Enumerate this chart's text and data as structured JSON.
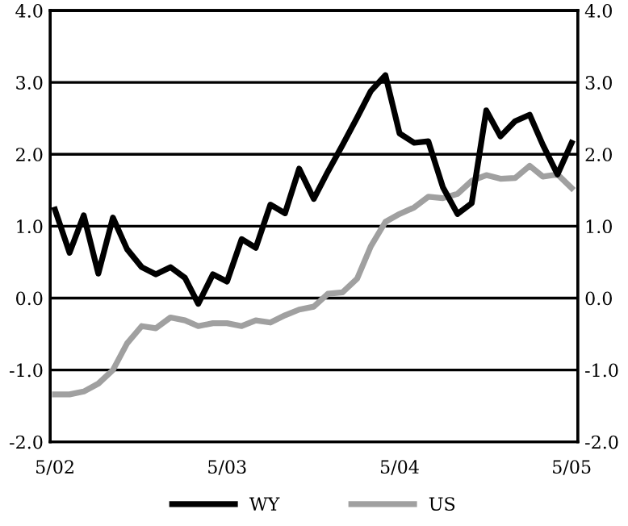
{
  "chart_data": {
    "type": "line",
    "x": [
      "2002-05",
      "2002-06",
      "2002-07",
      "2002-08",
      "2002-09",
      "2002-10",
      "2002-11",
      "2002-12",
      "2003-01",
      "2003-02",
      "2003-03",
      "2003-04",
      "2003-05",
      "2003-06",
      "2003-07",
      "2003-08",
      "2003-09",
      "2003-10",
      "2003-11",
      "2003-12",
      "2004-01",
      "2004-02",
      "2004-03",
      "2004-04",
      "2004-05",
      "2004-06",
      "2004-07",
      "2004-08",
      "2004-09",
      "2004-10",
      "2004-11",
      "2004-12",
      "2005-01",
      "2005-02",
      "2005-03",
      "2005-04",
      "2005-05"
    ],
    "series": [
      {
        "name": "WY",
        "color": "#000000",
        "values": [
          1.23,
          0.63,
          1.15,
          0.34,
          1.12,
          0.68,
          0.43,
          0.33,
          0.43,
          0.28,
          -0.08,
          0.33,
          0.23,
          0.82,
          0.7,
          1.3,
          1.18,
          1.8,
          1.38,
          1.76,
          2.13,
          2.51,
          2.88,
          3.1,
          2.29,
          2.16,
          2.18,
          1.54,
          1.17,
          1.32,
          2.61,
          2.25,
          2.46,
          2.55,
          2.13,
          1.72,
          2.16
        ]
      },
      {
        "name": "US",
        "color": "#a0a0a0",
        "values": [
          -1.34,
          -1.34,
          -1.3,
          -1.19,
          -1.0,
          -0.63,
          -0.39,
          -0.42,
          -0.27,
          -0.31,
          -0.39,
          -0.35,
          -0.35,
          -0.39,
          -0.31,
          -0.34,
          -0.24,
          -0.16,
          -0.12,
          0.06,
          0.08,
          0.27,
          0.72,
          1.06,
          1.17,
          1.26,
          1.41,
          1.39,
          1.45,
          1.63,
          1.71,
          1.66,
          1.67,
          1.84,
          1.69,
          1.72,
          1.53
        ]
      }
    ],
    "xlim": [
      "2002-04-21",
      "2005-05-14"
    ],
    "xticks": [
      {
        "value": "2002-05",
        "label": "5/02"
      },
      {
        "value": "2003-05",
        "label": "5/03"
      },
      {
        "value": "2004-05",
        "label": "5/04"
      },
      {
        "value": "2005-05",
        "label": "5/05"
      }
    ],
    "ylim": [
      -2.0,
      4.0
    ],
    "yticks": [
      {
        "value": -2.0,
        "label": "-2.0"
      },
      {
        "value": -1.0,
        "label": "-1.0"
      },
      {
        "value": 0.0,
        "label": "0.0"
      },
      {
        "value": 1.0,
        "label": "1.0"
      },
      {
        "value": 2.0,
        "label": "2.0"
      },
      {
        "value": 3.0,
        "label": "3.0"
      },
      {
        "value": 4.0,
        "label": "4.0"
      }
    ],
    "y2lim": [
      -2.0,
      4.0
    ],
    "y2ticks": [
      {
        "value": -2.0,
        "label": "-2.0"
      },
      {
        "value": -1.0,
        "label": "-1.0"
      },
      {
        "value": 0.0,
        "label": "0.0"
      },
      {
        "value": 1.0,
        "label": "1.0"
      },
      {
        "value": 2.0,
        "label": "2.0"
      },
      {
        "value": 3.0,
        "label": "3.0"
      },
      {
        "value": 4.0,
        "label": "4.0"
      }
    ],
    "grid": "y",
    "legend": "bottom",
    "line_style": "solid"
  }
}
